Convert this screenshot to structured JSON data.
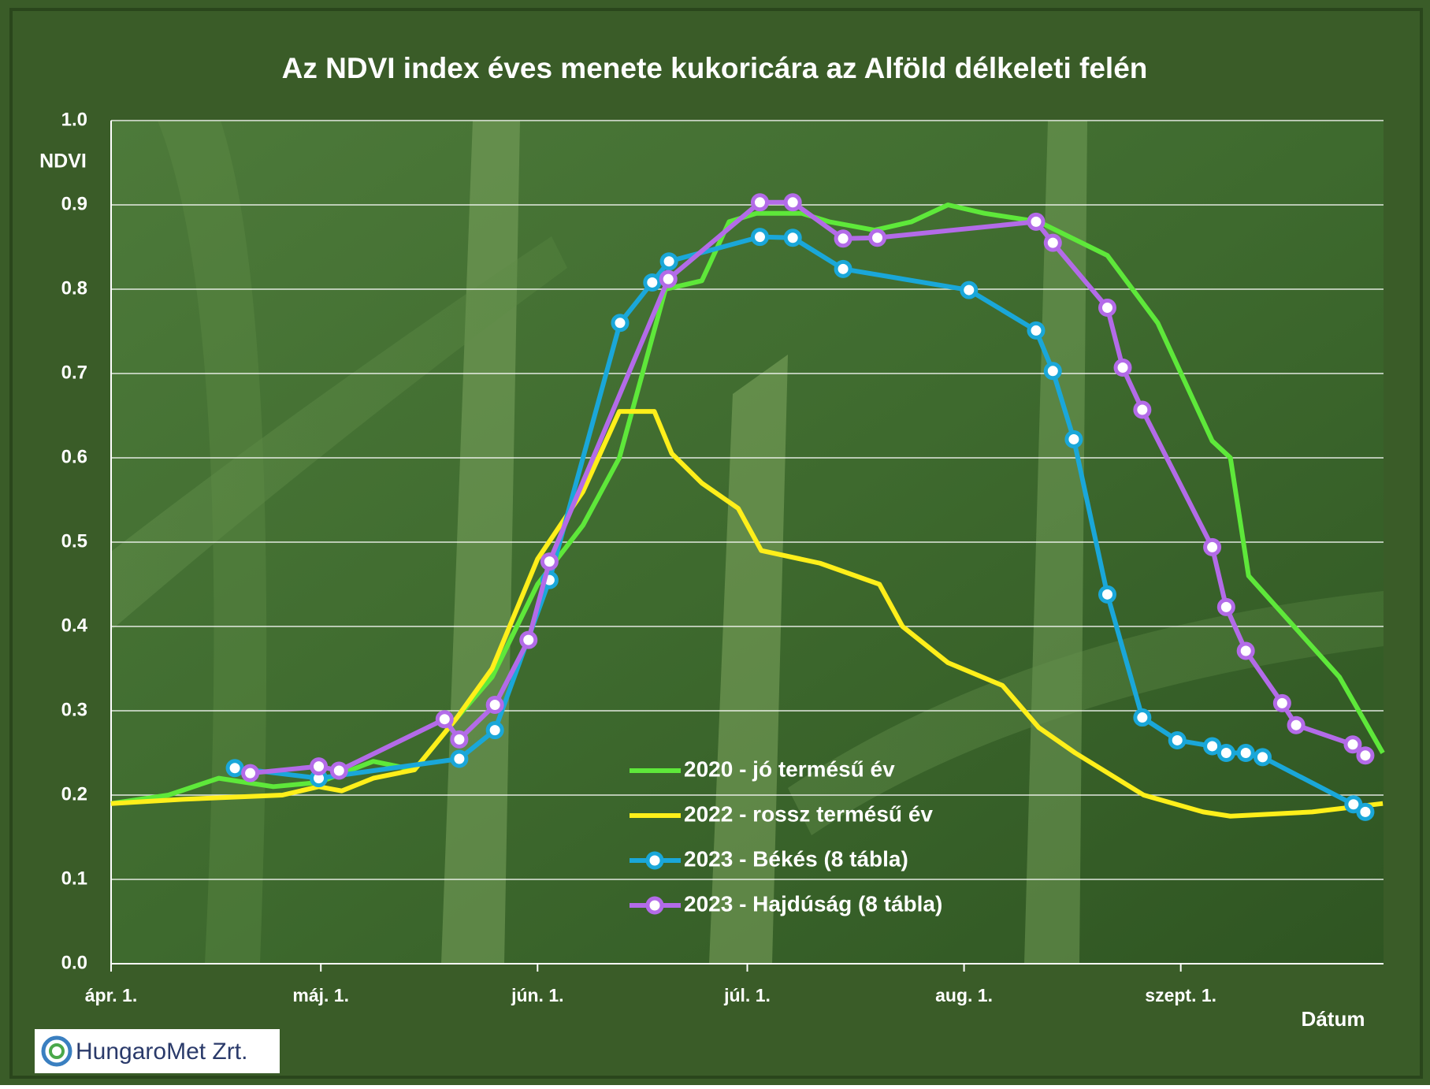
{
  "chart_data": {
    "type": "line",
    "title": "Az NDVI index éves menete kukoricára az Alföld délkeleti felén",
    "y_label": "NDVI",
    "x_label": "Dátum",
    "logo": "HungaroMet Zrt.",
    "xlim": [
      0,
      182
    ],
    "xticks": [
      {
        "value": 0,
        "label": "ápr. 1."
      },
      {
        "value": 30,
        "label": "máj. 1."
      },
      {
        "value": 61,
        "label": "jún. 1."
      },
      {
        "value": 91,
        "label": "júl. 1."
      },
      {
        "value": 122,
        "label": "aug. 1."
      },
      {
        "value": 153,
        "label": "szept. 1."
      }
    ],
    "ylim": [
      0,
      1
    ],
    "yticks": [
      {
        "value": 0,
        "label": "0.0"
      },
      0.1,
      0.2,
      0.3,
      0.4,
      0.5,
      0.6,
      0.7,
      0.8,
      0.9,
      {
        "value": 1,
        "label": "1.0"
      }
    ],
    "grid": true,
    "series": [
      {
        "name": "2020 - jó termésű év",
        "color": "#5ee83a",
        "markers": false,
        "x": [
          0,
          8.2,
          15.4,
          23.2,
          29.7,
          37.5,
          43.4,
          49.3,
          54.5,
          61,
          67.5,
          72.7,
          79.3,
          84.5,
          88.4,
          92.3,
          98.8,
          102.7,
          109.2,
          114.5,
          119.7,
          124.9,
          132.7,
          142.5,
          149.7,
          157.5,
          160.1,
          162.7,
          169.2,
          175.7,
          181.9
        ],
        "values": [
          0.19,
          0.2,
          0.22,
          0.21,
          0.215,
          0.24,
          0.23,
          0.29,
          0.34,
          0.45,
          0.52,
          0.6,
          0.8,
          0.81,
          0.88,
          0.89,
          0.89,
          0.88,
          0.87,
          0.88,
          0.9,
          0.89,
          0.88,
          0.84,
          0.76,
          0.62,
          0.6,
          0.46,
          0.4,
          0.34,
          0.25
        ]
      },
      {
        "name": "2022 - rossz termésű év",
        "color": "#ffef1a",
        "markers": false,
        "x": [
          0,
          10.2,
          24.5,
          29.7,
          33,
          37.5,
          43.4,
          49.3,
          54.5,
          61,
          67.5,
          72.7,
          77.7,
          80.2,
          84.5,
          89.7,
          93,
          101.4,
          109.9,
          113.2,
          119.7,
          127.5,
          132.7,
          137.9,
          147.7,
          156.2,
          160.1,
          171.8,
          181.9
        ],
        "values": [
          0.19,
          0.195,
          0.2,
          0.21,
          0.205,
          0.22,
          0.23,
          0.29,
          0.35,
          0.48,
          0.56,
          0.655,
          0.655,
          0.605,
          0.57,
          0.54,
          0.49,
          0.475,
          0.45,
          0.4,
          0.357,
          0.33,
          0.28,
          0.25,
          0.2,
          0.18,
          0.175,
          0.18,
          0.19
        ]
      },
      {
        "name": "2023 - Békés (8 tábla)",
        "color": "#1aa7d9",
        "markers": true,
        "x": [
          17.7,
          29.7,
          49.8,
          54.9,
          62.7,
          72.8,
          77.4,
          79.8,
          92.8,
          97.5,
          104.7,
          122.7,
          132.3,
          134.7,
          137.7,
          142.5,
          147.5,
          152.5,
          157.5,
          159.5,
          162.3,
          164.7,
          177.7,
          179.4
        ],
        "values": [
          0.232,
          0.22,
          0.243,
          0.277,
          0.455,
          0.76,
          0.808,
          0.833,
          0.862,
          0.861,
          0.824,
          0.799,
          0.751,
          0.703,
          0.622,
          0.438,
          0.292,
          0.265,
          0.258,
          0.25,
          0.25,
          0.245,
          0.189,
          0.18
        ]
      },
      {
        "name": "2023 - Hajdúság (8 tábla)",
        "color": "#b36be8",
        "markers": true,
        "x": [
          19.9,
          29.7,
          32.6,
          47.7,
          49.8,
          54.9,
          59.7,
          62.7,
          79.7,
          92.8,
          97.5,
          104.7,
          109.6,
          132.3,
          134.7,
          142.5,
          144.7,
          147.5,
          157.5,
          159.5,
          162.3,
          167.5,
          169.5,
          177.6,
          179.4
        ],
        "values": [
          0.226,
          0.234,
          0.229,
          0.29,
          0.266,
          0.307,
          0.384,
          0.477,
          0.812,
          0.903,
          0.903,
          0.86,
          0.861,
          0.88,
          0.855,
          0.778,
          0.707,
          0.657,
          0.494,
          0.423,
          0.371,
          0.309,
          0.283,
          0.26,
          0.247
        ]
      }
    ]
  }
}
